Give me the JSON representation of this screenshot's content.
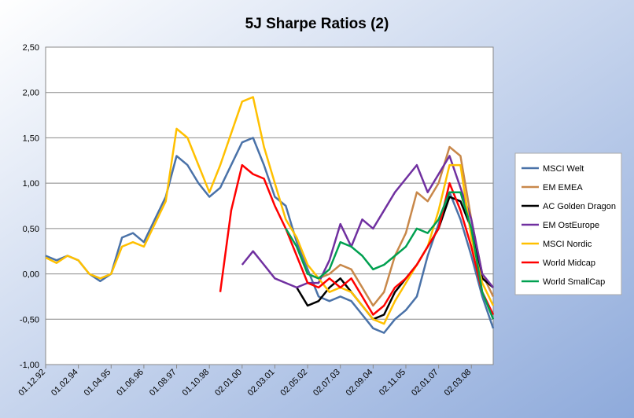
{
  "chart_data": {
    "type": "line",
    "title": "5J Sharpe Ratios (2)",
    "categories": [
      "01.12.92",
      null,
      null,
      "01.02.94",
      null,
      null,
      "01.04.95",
      null,
      null,
      "01.06.96",
      null,
      null,
      "01.08.97",
      null,
      null,
      "01.10.98",
      null,
      null,
      "02.01.00",
      null,
      null,
      "02.03.01",
      null,
      null,
      "02.05.02",
      null,
      null,
      "02.07.03",
      null,
      null,
      "02.09.04",
      null,
      null,
      "02.11.05",
      null,
      null,
      "02.01.07",
      null,
      null,
      "02.03.08",
      null,
      null
    ],
    "series": [
      {
        "name": "MSCI Welt",
        "color": "#4a72a8",
        "values": [
          0.2,
          0.15,
          0.2,
          0.15,
          0.0,
          -0.08,
          0.0,
          0.4,
          0.45,
          0.35,
          0.6,
          0.85,
          1.3,
          1.2,
          1.0,
          0.85,
          0.95,
          1.2,
          1.45,
          1.5,
          1.2,
          0.85,
          0.75,
          0.35,
          0.05,
          -0.25,
          -0.3,
          -0.25,
          -0.3,
          -0.45,
          -0.6,
          -0.65,
          -0.5,
          -0.4,
          -0.25,
          0.2,
          0.55,
          0.9,
          0.6,
          0.2,
          -0.25,
          -0.6
        ]
      },
      {
        "name": "EM EMEA",
        "color": "#c8884a",
        "values": [
          null,
          null,
          null,
          null,
          null,
          null,
          null,
          null,
          null,
          null,
          null,
          null,
          null,
          null,
          null,
          null,
          null,
          null,
          null,
          null,
          null,
          null,
          null,
          0.3,
          0.0,
          -0.05,
          0.0,
          0.1,
          0.05,
          -0.15,
          -0.35,
          -0.2,
          0.2,
          0.45,
          0.9,
          0.8,
          1.0,
          1.4,
          1.3,
          0.6,
          0.0,
          -0.25
        ]
      },
      {
        "name": "AC Golden Dragon",
        "color": "#000000",
        "values": [
          null,
          null,
          null,
          null,
          null,
          null,
          null,
          null,
          null,
          null,
          null,
          null,
          null,
          null,
          null,
          null,
          null,
          null,
          null,
          null,
          null,
          null,
          null,
          -0.15,
          -0.35,
          -0.3,
          -0.15,
          -0.05,
          -0.2,
          -0.35,
          -0.5,
          -0.45,
          -0.2,
          -0.05,
          0.1,
          0.3,
          0.5,
          0.85,
          0.8,
          0.5,
          -0.05,
          -0.15
        ]
      },
      {
        "name": "EM OstEurope",
        "color": "#7030a0",
        "values": [
          null,
          null,
          null,
          null,
          null,
          null,
          null,
          null,
          null,
          null,
          null,
          null,
          null,
          null,
          null,
          null,
          null,
          null,
          0.1,
          0.25,
          0.1,
          -0.05,
          -0.1,
          -0.15,
          -0.1,
          -0.1,
          0.15,
          0.55,
          0.3,
          0.6,
          0.5,
          0.7,
          0.9,
          1.05,
          1.2,
          0.9,
          1.1,
          1.3,
          0.95,
          0.6,
          0.0,
          -0.15
        ]
      },
      {
        "name": "MSCI Nordic",
        "color": "#ffc000",
        "values": [
          0.18,
          0.12,
          0.2,
          0.15,
          0.0,
          -0.05,
          0.0,
          0.3,
          0.35,
          0.3,
          0.55,
          0.8,
          1.6,
          1.5,
          1.2,
          0.9,
          1.2,
          1.55,
          1.9,
          1.95,
          1.4,
          1.0,
          0.6,
          0.4,
          0.1,
          -0.05,
          -0.2,
          -0.15,
          -0.2,
          -0.35,
          -0.5,
          -0.55,
          -0.3,
          -0.1,
          0.1,
          0.3,
          0.7,
          1.2,
          1.2,
          0.4,
          -0.1,
          -0.35
        ]
      },
      {
        "name": "World Midcap",
        "color": "#ff0000",
        "values": [
          null,
          null,
          null,
          null,
          null,
          null,
          null,
          null,
          null,
          null,
          null,
          null,
          null,
          null,
          null,
          null,
          -0.2,
          0.7,
          1.2,
          1.1,
          1.05,
          0.75,
          0.5,
          0.2,
          -0.1,
          -0.15,
          -0.05,
          -0.15,
          -0.05,
          -0.25,
          -0.45,
          -0.35,
          -0.15,
          -0.05,
          0.1,
          0.3,
          0.5,
          1.0,
          0.7,
          0.3,
          -0.2,
          -0.45
        ]
      },
      {
        "name": "World SmallCap",
        "color": "#00a050",
        "values": [
          null,
          null,
          null,
          null,
          null,
          null,
          null,
          null,
          null,
          null,
          null,
          null,
          null,
          null,
          null,
          null,
          null,
          null,
          null,
          null,
          null,
          null,
          0.5,
          0.3,
          0.0,
          -0.05,
          0.05,
          0.35,
          0.3,
          0.2,
          0.05,
          0.1,
          0.2,
          0.3,
          0.5,
          0.45,
          0.6,
          0.9,
          0.9,
          0.5,
          -0.2,
          -0.5
        ]
      }
    ],
    "ylim": [
      -1,
      2.5
    ],
    "yticks": [
      {
        "value": -1,
        "label": "-1,00"
      },
      {
        "value": -0.5,
        "label": "-0,50"
      },
      {
        "value": 0,
        "label": "0,00"
      },
      {
        "value": 0.5,
        "label": "0,50"
      },
      {
        "value": 1,
        "label": "1,00"
      },
      {
        "value": 1.5,
        "label": "1,50"
      },
      {
        "value": 2,
        "label": "2,00"
      },
      {
        "value": 2.5,
        "label": "2,50"
      }
    ],
    "grid": true,
    "legend": "right"
  }
}
